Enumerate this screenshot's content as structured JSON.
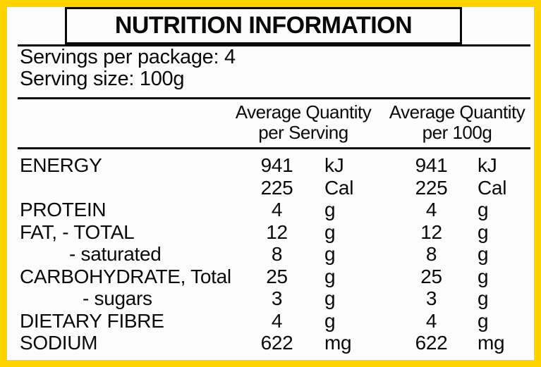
{
  "panel": {
    "title": "NUTRITION INFORMATION",
    "servings_line": "Servings per package: 4",
    "serving_size_line": "Serving size: 100g",
    "columns": [
      {
        "line1": "Average Quantity",
        "line2": "per Serving"
      },
      {
        "line1": "Average Quantity",
        "line2": "per 100g"
      }
    ],
    "rows": [
      {
        "label": "ENERGY",
        "v1": "941",
        "u1": "kJ",
        "v2": "941",
        "u2": "kJ"
      },
      {
        "label": "",
        "v1": "225",
        "u1": "Cal",
        "v2": "225",
        "u2": "Cal"
      },
      {
        "label": "PROTEIN",
        "v1": "4",
        "u1": "g",
        "v2": "4",
        "u2": "g"
      },
      {
        "label": "FAT, - TOTAL",
        "v1": "12",
        "u1": "g",
        "v2": "12",
        "u2": "g"
      },
      {
        "label": "- saturated",
        "v1": "8",
        "u1": "g",
        "v2": "8",
        "u2": "g"
      },
      {
        "label": "CARBOHYDRATE, Total",
        "v1": "25",
        "u1": "g",
        "v2": "25",
        "u2": "g"
      },
      {
        "label": "- sugars",
        "v1": "3",
        "u1": "g",
        "v2": "3",
        "u2": "g"
      },
      {
        "label": "DIETARY FIBRE",
        "v1": "4",
        "u1": "g",
        "v2": "4",
        "u2": "g"
      },
      {
        "label": "SODIUM",
        "v1": "622",
        "u1": "mg",
        "v2": "622",
        "u2": "mg"
      }
    ],
    "colors": {
      "border": "#FFD300",
      "text": "#0A0A0A",
      "background": "#FCFCFC"
    }
  }
}
